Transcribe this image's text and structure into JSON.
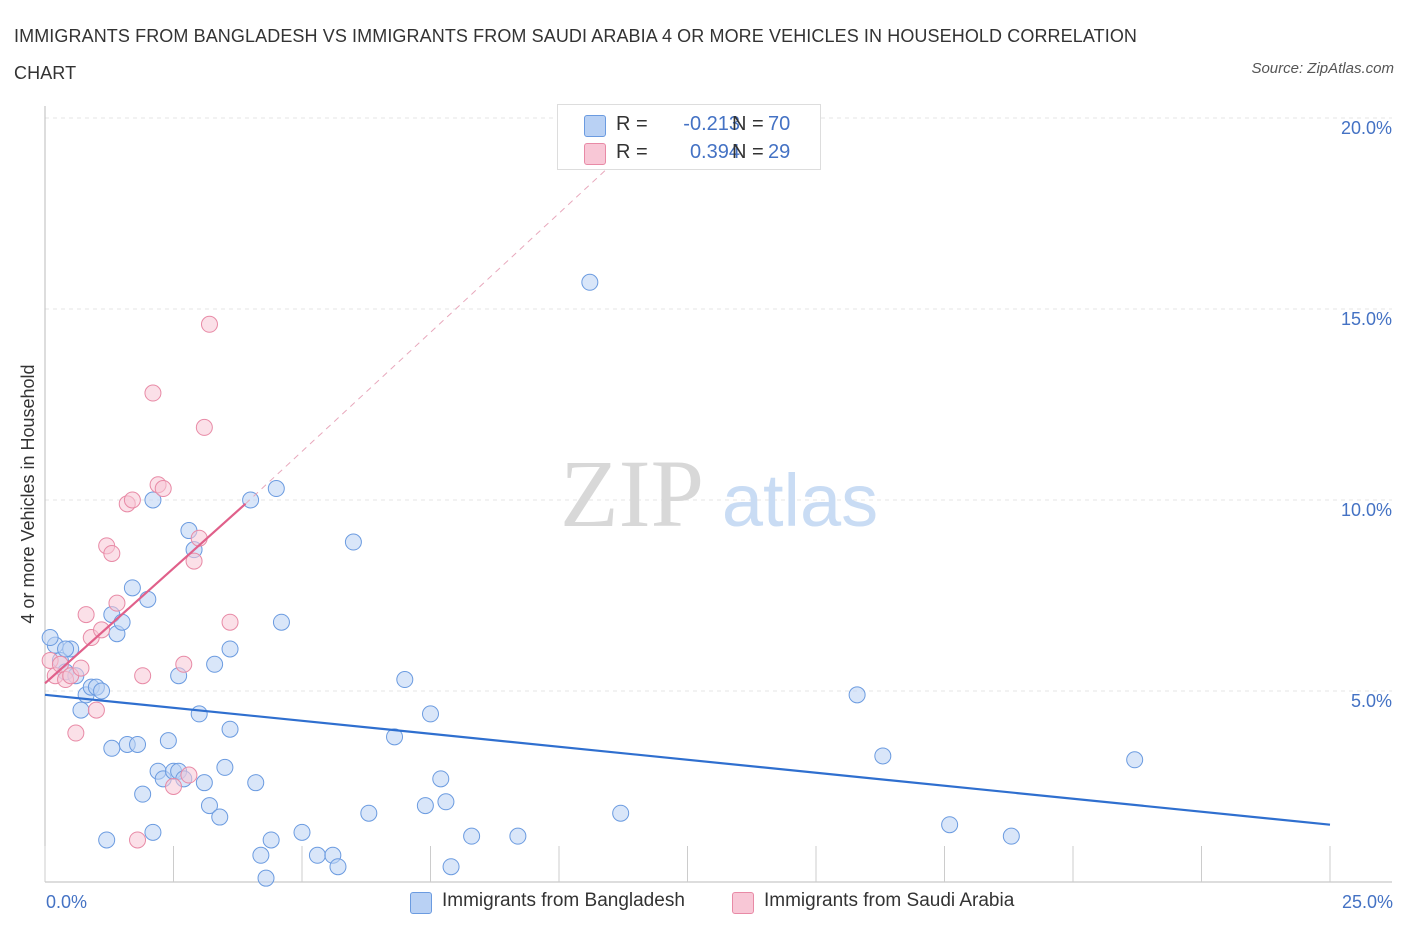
{
  "title": "IMMIGRANTS FROM BANGLADESH VS IMMIGRANTS FROM SAUDI ARABIA 4 OR MORE VEHICLES IN HOUSEHOLD CORRELATION CHART",
  "source": "Source: ZipAtlas.com",
  "watermark": {
    "zip": "ZIP",
    "atlas": "atlas"
  },
  "legend": {
    "rows": [
      {
        "r_label": "R =",
        "r_value": "-0.213",
        "n_label": "N =",
        "n_value": "70",
        "color": "#6b9be0",
        "fill": "#b9d1f4"
      },
      {
        "r_label": "R =",
        "r_value": "0.394",
        "n_label": "N =",
        "n_value": "29",
        "color": "#e88aa6",
        "fill": "#f8c7d6"
      }
    ]
  },
  "chart_data": {
    "type": "scatter",
    "title": "IMMIGRANTS FROM BANGLADESH VS IMMIGRANTS FROM SAUDI ARABIA 4 OR MORE VEHICLES IN HOUSEHOLD CORRELATION CHART",
    "xlabel": "",
    "ylabel": "4 or more Vehicles in Household",
    "xlim": [
      0,
      25
    ],
    "ylim": [
      0,
      20
    ],
    "x_tick_labels": [
      {
        "value": 0,
        "label": "0.0%"
      },
      {
        "value": 25,
        "label": "25.0%"
      }
    ],
    "y_tick_labels": [
      {
        "value": 5,
        "label": "5.0%"
      },
      {
        "value": 10,
        "label": "10.0%"
      },
      {
        "value": 15,
        "label": "15.0%"
      },
      {
        "value": 20,
        "label": "20.0%"
      }
    ],
    "grid": true,
    "series": [
      {
        "name": "Immigrants from Bangladesh",
        "color": "#3a78d0",
        "fill": "#b9d1f4",
        "stroke": "#6b9be0",
        "trend": {
          "x": [
            0,
            25
          ],
          "y": [
            4.9,
            1.5
          ],
          "color": "#2f6fcf",
          "dashed_extension": false
        },
        "points": [
          [
            0.2,
            6.2
          ],
          [
            0.3,
            5.8
          ],
          [
            0.4,
            5.5
          ],
          [
            0.5,
            6.1
          ],
          [
            0.6,
            5.4
          ],
          [
            0.7,
            4.5
          ],
          [
            0.8,
            4.9
          ],
          [
            0.9,
            5.1
          ],
          [
            1.0,
            5.1
          ],
          [
            1.1,
            5.0
          ],
          [
            1.2,
            1.1
          ],
          [
            1.3,
            7.0
          ],
          [
            1.4,
            6.5
          ],
          [
            1.5,
            6.8
          ],
          [
            1.6,
            3.6
          ],
          [
            1.7,
            7.7
          ],
          [
            1.8,
            3.6
          ],
          [
            1.9,
            2.3
          ],
          [
            2.0,
            7.4
          ],
          [
            2.1,
            1.3
          ],
          [
            2.1,
            10.0
          ],
          [
            2.2,
            2.9
          ],
          [
            2.3,
            2.7
          ],
          [
            2.4,
            3.7
          ],
          [
            2.5,
            2.9
          ],
          [
            2.6,
            2.9
          ],
          [
            2.6,
            5.4
          ],
          [
            2.7,
            2.7
          ],
          [
            2.8,
            9.2
          ],
          [
            2.9,
            8.7
          ],
          [
            3.0,
            4.4
          ],
          [
            3.1,
            2.6
          ],
          [
            3.2,
            2.0
          ],
          [
            3.3,
            5.7
          ],
          [
            3.4,
            1.7
          ],
          [
            3.5,
            3.0
          ],
          [
            3.6,
            6.1
          ],
          [
            3.6,
            4.0
          ],
          [
            4.0,
            10.0
          ],
          [
            4.1,
            2.6
          ],
          [
            4.2,
            0.7
          ],
          [
            4.3,
            0.1
          ],
          [
            4.4,
            1.1
          ],
          [
            4.5,
            10.3
          ],
          [
            4.6,
            6.8
          ],
          [
            5.0,
            1.3
          ],
          [
            5.3,
            0.7
          ],
          [
            5.6,
            0.7
          ],
          [
            5.7,
            0.4
          ],
          [
            6.0,
            8.9
          ],
          [
            6.3,
            1.8
          ],
          [
            6.8,
            3.8
          ],
          [
            7.0,
            5.3
          ],
          [
            7.4,
            2.0
          ],
          [
            7.5,
            4.4
          ],
          [
            7.7,
            2.7
          ],
          [
            7.8,
            2.1
          ],
          [
            7.9,
            0.4
          ],
          [
            8.3,
            1.2
          ],
          [
            9.2,
            1.2
          ],
          [
            10.6,
            15.7
          ],
          [
            11.2,
            1.8
          ],
          [
            15.8,
            4.9
          ],
          [
            16.3,
            3.3
          ],
          [
            17.6,
            1.5
          ],
          [
            18.8,
            1.2
          ],
          [
            21.2,
            3.2
          ],
          [
            1.3,
            3.5
          ],
          [
            0.4,
            6.1
          ],
          [
            0.1,
            6.4
          ]
        ]
      },
      {
        "name": "Immigrants from Saudi Arabia",
        "color": "#e0608a",
        "fill": "#f8c7d6",
        "stroke": "#e88aa6",
        "trend": {
          "x": [
            0,
            3.9
          ],
          "y": [
            5.2,
            9.9
          ],
          "color": "#e0608a",
          "dashed_extension": true,
          "extend_to": [
            12.0,
            20.0
          ]
        },
        "points": [
          [
            0.1,
            5.8
          ],
          [
            0.2,
            5.4
          ],
          [
            0.3,
            5.7
          ],
          [
            0.4,
            5.3
          ],
          [
            0.5,
            5.4
          ],
          [
            0.6,
            3.9
          ],
          [
            0.7,
            5.6
          ],
          [
            0.8,
            7.0
          ],
          [
            0.9,
            6.4
          ],
          [
            1.0,
            4.5
          ],
          [
            1.1,
            6.6
          ],
          [
            1.2,
            8.8
          ],
          [
            1.3,
            8.6
          ],
          [
            1.4,
            7.3
          ],
          [
            1.6,
            9.9
          ],
          [
            1.7,
            10.0
          ],
          [
            1.8,
            1.1
          ],
          [
            1.9,
            5.4
          ],
          [
            2.1,
            12.8
          ],
          [
            2.2,
            10.4
          ],
          [
            2.3,
            10.3
          ],
          [
            2.5,
            2.5
          ],
          [
            2.7,
            5.7
          ],
          [
            2.8,
            2.8
          ],
          [
            2.9,
            8.4
          ],
          [
            3.0,
            9.0
          ],
          [
            3.1,
            11.9
          ],
          [
            3.2,
            14.6
          ],
          [
            3.6,
            6.8
          ]
        ]
      }
    ]
  }
}
